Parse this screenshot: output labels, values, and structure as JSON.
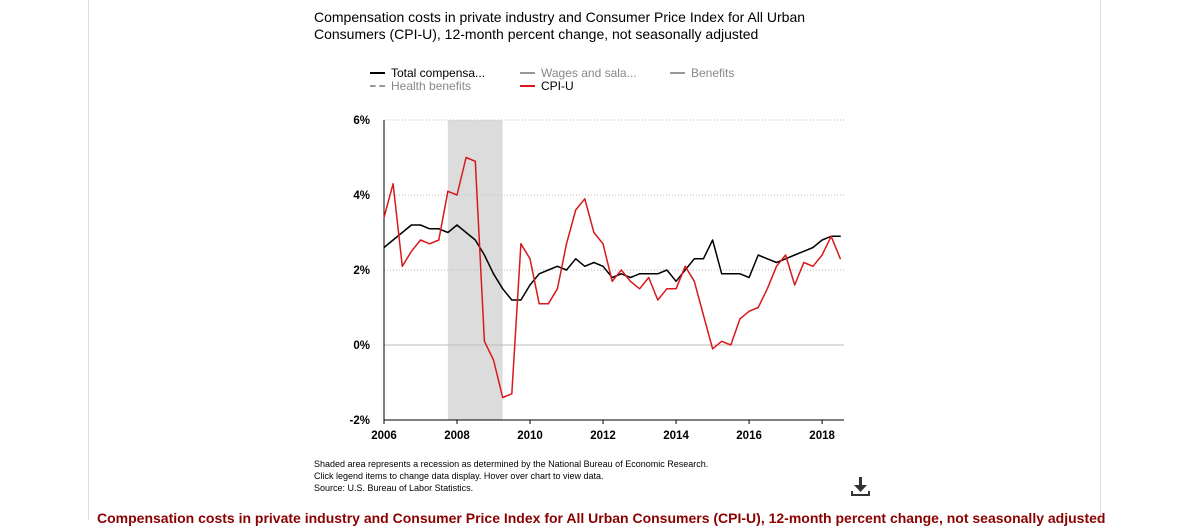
{
  "title": "Compensation costs in private industry and Consumer Price Index for All Urban Consumers (CPI-U), 12-month percent change, not seasonally adjusted",
  "legend": [
    {
      "label": "Total compensa...",
      "color": "#000000",
      "style": "solid",
      "muted": false
    },
    {
      "label": "Wages and sala...",
      "color": "#999999",
      "style": "solid",
      "muted": true
    },
    {
      "label": "Benefits",
      "color": "#999999",
      "style": "solid",
      "muted": true
    },
    {
      "label": "Health benefits",
      "color": "#999999",
      "style": "dashed",
      "muted": true
    },
    {
      "label": "CPI-U",
      "color": "#d7191c",
      "style": "solid",
      "muted": false
    }
  ],
  "notes": [
    "Shaded area represents a recession as determined by the National Bureau of Economic Research.",
    "Click legend items to change data display. Hover over chart to view data.",
    "Source: U.S. Bureau of Labor Statistics."
  ],
  "download_icon": "download-icon",
  "footer_title": "Compensation costs in private industry and Consumer Price Index for All Urban Consumers (CPI-U), 12-month percent change, not seasonally adjusted",
  "chart_data": {
    "type": "line",
    "title": "Compensation costs in private industry and Consumer Price Index for All Urban Consumers (CPI-U), 12-month percent change, not seasonally adjusted",
    "xlim": [
      2006,
      2018.6
    ],
    "ylim": [
      -2,
      6
    ],
    "x_ticks": [
      2006,
      2008,
      2010,
      2012,
      2014,
      2016,
      2018
    ],
    "y_ticks": [
      {
        "value": -2,
        "label": "-2%"
      },
      {
        "value": 0,
        "label": "0%"
      },
      {
        "value": 2,
        "label": "2%"
      },
      {
        "value": 4,
        "label": "4%"
      },
      {
        "value": 6,
        "label": "6%"
      }
    ],
    "grid": "horizontal dotted",
    "recession": {
      "start": 2007.75,
      "end": 2009.25,
      "color": "#dcdcdc"
    },
    "series": [
      {
        "name": "Total compensa...",
        "color": "#000000",
        "x": [
          2006.0,
          2006.25,
          2006.5,
          2006.75,
          2007.0,
          2007.25,
          2007.5,
          2007.75,
          2008.0,
          2008.25,
          2008.5,
          2008.75,
          2009.0,
          2009.25,
          2009.5,
          2009.75,
          2010.0,
          2010.25,
          2010.5,
          2010.75,
          2011.0,
          2011.25,
          2011.5,
          2011.75,
          2012.0,
          2012.25,
          2012.5,
          2012.75,
          2013.0,
          2013.25,
          2013.5,
          2013.75,
          2014.0,
          2014.25,
          2014.5,
          2014.75,
          2015.0,
          2015.25,
          2015.5,
          2015.75,
          2016.0,
          2016.25,
          2016.5,
          2016.75,
          2017.0,
          2017.25,
          2017.5,
          2017.75,
          2018.0,
          2018.25,
          2018.5
        ],
        "y": [
          2.6,
          2.8,
          3.0,
          3.2,
          3.2,
          3.1,
          3.1,
          3.0,
          3.2,
          3.0,
          2.8,
          2.4,
          1.9,
          1.5,
          1.2,
          1.2,
          1.6,
          1.9,
          2.0,
          2.1,
          2.0,
          2.3,
          2.1,
          2.2,
          2.1,
          1.8,
          1.9,
          1.8,
          1.9,
          1.9,
          1.9,
          2.0,
          1.7,
          2.0,
          2.3,
          2.3,
          2.8,
          1.9,
          1.9,
          1.9,
          1.8,
          2.4,
          2.3,
          2.2,
          2.3,
          2.4,
          2.5,
          2.6,
          2.8,
          2.9,
          2.9
        ]
      },
      {
        "name": "CPI-U",
        "color": "#d7191c",
        "x": [
          2006.0,
          2006.25,
          2006.5,
          2006.75,
          2007.0,
          2007.25,
          2007.5,
          2007.75,
          2008.0,
          2008.25,
          2008.5,
          2008.75,
          2009.0,
          2009.25,
          2009.5,
          2009.75,
          2010.0,
          2010.25,
          2010.5,
          2010.75,
          2011.0,
          2011.25,
          2011.5,
          2011.75,
          2012.0,
          2012.25,
          2012.5,
          2012.75,
          2013.0,
          2013.25,
          2013.5,
          2013.75,
          2014.0,
          2014.25,
          2014.5,
          2014.75,
          2015.0,
          2015.25,
          2015.5,
          2015.75,
          2016.0,
          2016.25,
          2016.5,
          2016.75,
          2017.0,
          2017.25,
          2017.5,
          2017.75,
          2018.0,
          2018.25,
          2018.5
        ],
        "y": [
          3.4,
          4.3,
          2.1,
          2.5,
          2.8,
          2.7,
          2.8,
          4.1,
          4.0,
          5.0,
          4.9,
          0.1,
          -0.4,
          -1.4,
          -1.3,
          2.7,
          2.3,
          1.1,
          1.1,
          1.5,
          2.7,
          3.6,
          3.9,
          3.0,
          2.7,
          1.7,
          2.0,
          1.7,
          1.5,
          1.8,
          1.2,
          1.5,
          1.5,
          2.1,
          1.7,
          0.8,
          -0.1,
          0.1,
          0.0,
          0.7,
          0.9,
          1.0,
          1.5,
          2.1,
          2.4,
          1.6,
          2.2,
          2.1,
          2.4,
          2.9,
          2.3
        ]
      }
    ]
  }
}
